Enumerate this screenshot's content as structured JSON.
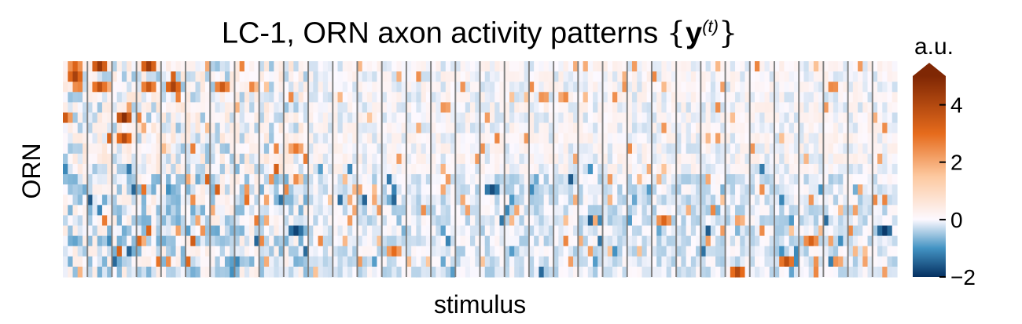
{
  "chart_data": {
    "type": "heatmap",
    "title_prefix": "LC-1, ORN axon activity patterns",
    "title_brace_open": "{",
    "title_bold_symbol": "y",
    "title_superscript": "(t)",
    "title_brace_close": "}",
    "xlabel": "stimulus",
    "ylabel": "ORN",
    "colorbar": {
      "label": "a.u.",
      "range": [
        -2,
        5
      ],
      "extend": "max",
      "ticks": [
        4,
        2,
        0,
        -2
      ],
      "tick_labels": [
        "4",
        "2",
        "0",
        "−2"
      ],
      "colors": {
        "-2": "#053061",
        "-1": "#4393c3",
        "0": "#fdf9ff",
        "1.5": "#fdc9a0",
        "3": "#e66b1c",
        "5": "#7f2704"
      }
    },
    "n_rows": 21,
    "n_columns": 170,
    "column_groups": 34,
    "cells_per_group": 5,
    "vertical_separator_color": "#808080",
    "notable_cells": [
      {
        "group": 0,
        "row": 0,
        "value": 3.2
      },
      {
        "group": 0,
        "row": 1,
        "value": 4.2
      },
      {
        "group": 1,
        "row": 0,
        "value": 4.5
      },
      {
        "group": 1,
        "row": 2,
        "value": 3.8
      },
      {
        "group": 2,
        "row": 5,
        "value": 4.8
      },
      {
        "group": 2,
        "row": 7,
        "value": 4.0
      },
      {
        "group": 3,
        "row": 0,
        "value": 4.4
      },
      {
        "group": 3,
        "row": 2,
        "value": 3.6
      },
      {
        "group": 4,
        "row": 2,
        "value": 4.2
      },
      {
        "group": 6,
        "row": 2,
        "value": 3.5
      },
      {
        "group": 9,
        "row": 8,
        "value": 2.8
      },
      {
        "group": 9,
        "row": 16,
        "value": -1.8
      },
      {
        "group": 13,
        "row": 18,
        "value": 3.0
      },
      {
        "group": 17,
        "row": 12,
        "value": -1.7
      },
      {
        "group": 24,
        "row": 15,
        "value": 3.2
      },
      {
        "group": 27,
        "row": 20,
        "value": 4.0
      },
      {
        "group": 29,
        "row": 19,
        "value": 3.8
      },
      {
        "group": 30,
        "row": 17,
        "value": 3.3
      },
      {
        "group": 33,
        "row": 16,
        "value": -1.9
      }
    ]
  }
}
